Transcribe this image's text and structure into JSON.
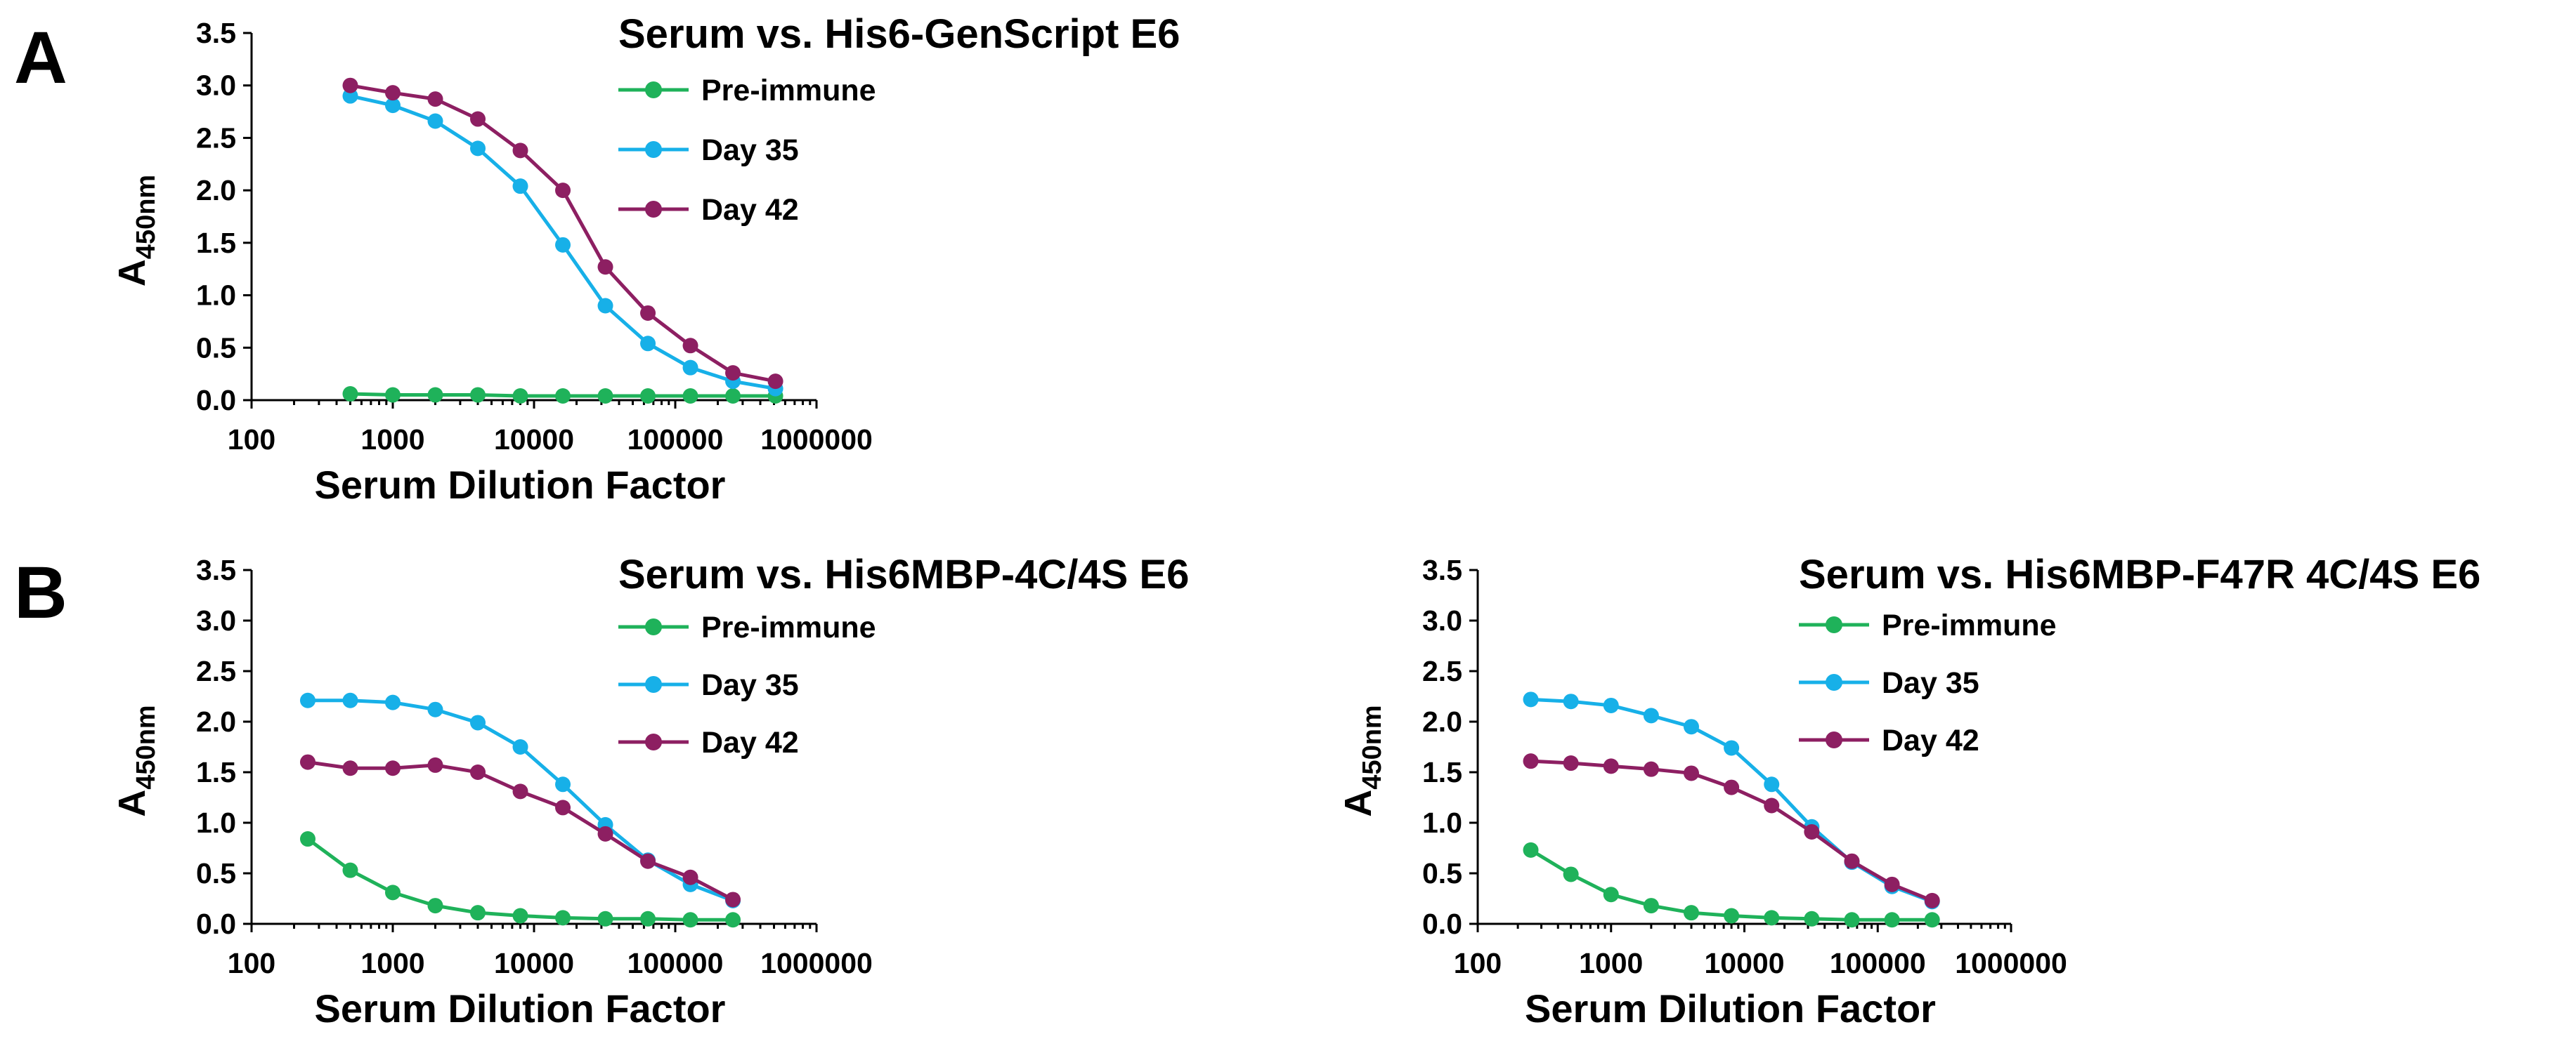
{
  "panels": [
    {
      "letter": "A"
    },
    {
      "letter": "B"
    }
  ],
  "colors": {
    "pre_immune": "#1fb25a",
    "day35": "#17b0e8",
    "day42": "#8d1f62"
  },
  "chart_data": [
    {
      "type": "line",
      "panel": "A",
      "title": "Serum vs. His6-GenScript E6",
      "xlabel": "Serum Dilution Factor",
      "ylabel_main": "A",
      "ylabel_sub": "450nm",
      "xscale": "log",
      "xlim": [
        100,
        1000000
      ],
      "ylim": [
        0,
        3.5
      ],
      "xticks": [
        "100",
        "1000",
        "10000",
        "100000",
        "1000000"
      ],
      "yticks": [
        "0.0",
        "0.5",
        "1.0",
        "1.5",
        "2.0",
        "2.5",
        "3.0",
        "3.5"
      ],
      "x": [
        500,
        1000,
        2000,
        4000,
        8000,
        16000,
        32000,
        64000,
        128000,
        256000,
        512000
      ],
      "series": [
        {
          "name": "Pre-immune",
          "key": "pre_immune",
          "values": [
            0.06,
            0.05,
            0.05,
            0.05,
            0.04,
            0.04,
            0.04,
            0.04,
            0.04,
            0.04,
            0.04
          ]
        },
        {
          "name": "Day 35",
          "key": "day35",
          "values": [
            2.9,
            2.81,
            2.66,
            2.4,
            2.04,
            1.48,
            0.9,
            0.54,
            0.31,
            0.18,
            0.11
          ]
        },
        {
          "name": "Day 42",
          "key": "day42",
          "values": [
            3.0,
            2.93,
            2.87,
            2.68,
            2.38,
            2.0,
            1.27,
            0.83,
            0.52,
            0.26,
            0.18
          ]
        }
      ],
      "legend": "top-right"
    },
    {
      "type": "line",
      "panel": "B",
      "title": "Serum vs. His6MBP-4C/4S E6",
      "xlabel": "Serum Dilution Factor",
      "ylabel_main": "A",
      "ylabel_sub": "450nm",
      "xscale": "log",
      "xlim": [
        100,
        1000000
      ],
      "ylim": [
        0,
        3.5
      ],
      "xticks": [
        "100",
        "1000",
        "10000",
        "100000",
        "1000000"
      ],
      "yticks": [
        "0.0",
        "0.5",
        "1.0",
        "1.5",
        "2.0",
        "2.5",
        "3.0",
        "3.5"
      ],
      "x": [
        250,
        500,
        1000,
        2000,
        4000,
        8000,
        16000,
        32000,
        64000,
        128000,
        256000
      ],
      "series": [
        {
          "name": "Pre-immune",
          "key": "pre_immune",
          "values": [
            0.84,
            0.53,
            0.31,
            0.18,
            0.11,
            0.08,
            0.06,
            0.05,
            0.05,
            0.04,
            0.04
          ]
        },
        {
          "name": "Day 35",
          "key": "day35",
          "values": [
            2.21,
            2.21,
            2.19,
            2.12,
            1.99,
            1.75,
            1.38,
            0.98,
            0.63,
            0.39,
            0.23
          ]
        },
        {
          "name": "Day 42",
          "key": "day42",
          "values": [
            1.6,
            1.54,
            1.54,
            1.57,
            1.5,
            1.31,
            1.15,
            0.89,
            0.62,
            0.46,
            0.24
          ]
        }
      ],
      "legend": "top-right"
    },
    {
      "type": "line",
      "panel": "B",
      "title": "Serum vs. His6MBP-F47R 4C/4S E6",
      "xlabel": "Serum Dilution Factor",
      "ylabel_main": "A",
      "ylabel_sub": "450nm",
      "xscale": "log",
      "xlim": [
        100,
        1000000
      ],
      "ylim": [
        0,
        3.5
      ],
      "xticks": [
        "100",
        "1000",
        "10000",
        "100000",
        "1000000"
      ],
      "yticks": [
        "0.0",
        "0.5",
        "1.0",
        "1.5",
        "2.0",
        "2.5",
        "3.0",
        "3.5"
      ],
      "x": [
        250,
        500,
        1000,
        2000,
        4000,
        8000,
        16000,
        32000,
        64000,
        128000,
        256000
      ],
      "series": [
        {
          "name": "Pre-immune",
          "key": "pre_immune",
          "values": [
            0.73,
            0.49,
            0.29,
            0.18,
            0.11,
            0.08,
            0.06,
            0.05,
            0.04,
            0.04,
            0.04
          ]
        },
        {
          "name": "Day 35",
          "key": "day35",
          "values": [
            2.22,
            2.2,
            2.16,
            2.06,
            1.95,
            1.74,
            1.38,
            0.96,
            0.61,
            0.37,
            0.22
          ]
        },
        {
          "name": "Day 42",
          "key": "day42",
          "values": [
            1.61,
            1.59,
            1.56,
            1.53,
            1.49,
            1.35,
            1.17,
            0.91,
            0.62,
            0.39,
            0.23
          ]
        }
      ],
      "legend": "top-right"
    }
  ]
}
